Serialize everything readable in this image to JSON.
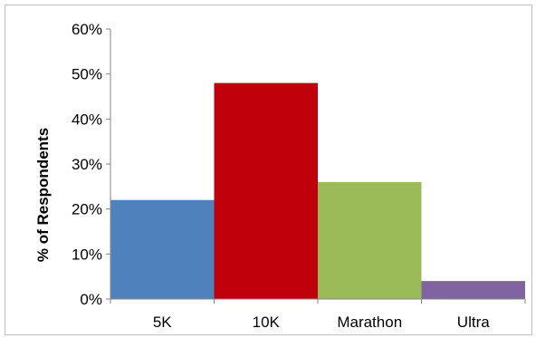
{
  "chart_data": {
    "type": "bar",
    "title": "",
    "xlabel": "",
    "ylabel": "% of Respondents",
    "categories": [
      "5K",
      "10K",
      "Marathon",
      "Ultra"
    ],
    "values": [
      22,
      48,
      26,
      4
    ],
    "value_unit": "%",
    "ylim": [
      0,
      60
    ],
    "yticks": [
      "0%",
      "10%",
      "20%",
      "30%",
      "40%",
      "50%",
      "60%"
    ],
    "colors": [
      "#4f81bd",
      "#c0000a",
      "#9bbb59",
      "#8064a2"
    ],
    "grid": false,
    "legend": "none",
    "bar_gap": 0
  }
}
